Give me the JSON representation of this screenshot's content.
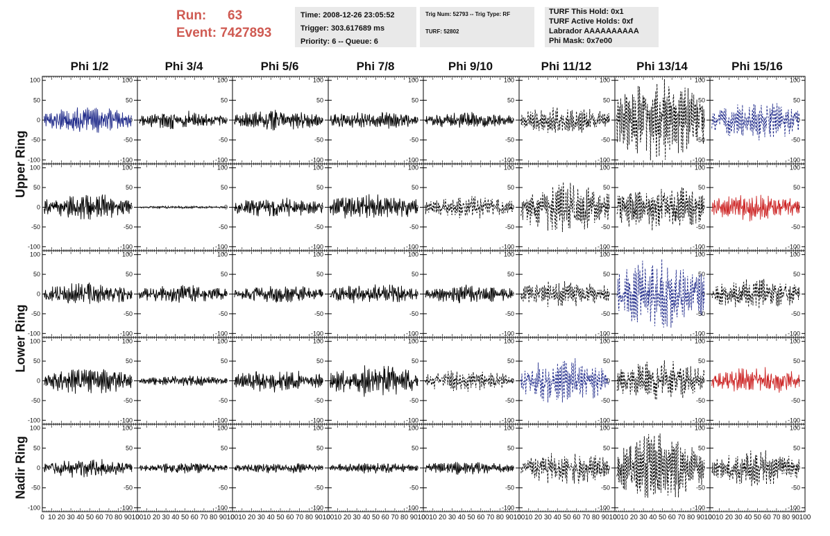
{
  "header": {
    "run_label": "Run:",
    "run_value": "63",
    "event_label": "Event:",
    "event_value": "7427893",
    "time": "Time: 2008-12-26 23:05:52",
    "trigger": "Trigger: 303.617689 ms",
    "priority": "Priority: 6 -- Queue: 6",
    "trig_num": "Trig Num: 52793 -- Trig Type: RF",
    "turf": "TURF: 52802",
    "turf_this_hold": "TURF This Hold: 0x1",
    "turf_active_holds": "TURF Active Holds: 0xf",
    "labrador": "Labrador AAAAAAAAAA",
    "phi_mask": "Phi Mask: 0x7e00"
  },
  "chart_data": {
    "type": "line",
    "columns": [
      "Phi 1/2",
      "Phi 3/4",
      "Phi 5/6",
      "Phi 7/8",
      "Phi 9/10",
      "Phi 11/12",
      "Phi 13/14",
      "Phi 15/16"
    ],
    "ring_labels": [
      {
        "label": "Upper Ring",
        "rows": [
          0,
          1
        ]
      },
      {
        "label": "Lower Ring",
        "rows": [
          2,
          3
        ]
      },
      {
        "label": "Nadir Ring",
        "rows": [
          4
        ]
      }
    ],
    "xlim": [
      0,
      100
    ],
    "xticks": [
      0,
      10,
      20,
      30,
      40,
      50,
      60,
      70,
      80,
      90,
      100
    ],
    "ylim": [
      -110,
      110
    ],
    "yticks": [
      -100,
      -50,
      0,
      50,
      100
    ],
    "colors": {
      "solid": "#000000",
      "dashed": "#000000",
      "blue": "#1f2a8a",
      "red": "#cc2222"
    },
    "rows": [
      [
        {
          "amp": 30,
          "style": "solid",
          "color": "blue"
        },
        {
          "amp": 20,
          "style": "solid",
          "color": "solid"
        },
        {
          "amp": 22,
          "style": "solid",
          "color": "solid"
        },
        {
          "amp": 20,
          "style": "solid",
          "color": "solid"
        },
        {
          "amp": 18,
          "style": "solid",
          "color": "solid"
        },
        {
          "amp": 30,
          "style": "dashed",
          "color": "dashed"
        },
        {
          "amp": 90,
          "style": "dashed",
          "color": "dashed"
        },
        {
          "amp": 45,
          "style": "dashed",
          "color": "blue"
        }
      ],
      [
        {
          "amp": 30,
          "style": "solid",
          "color": "solid"
        },
        {
          "amp": 3,
          "style": "solid",
          "color": "solid"
        },
        {
          "amp": 22,
          "style": "solid",
          "color": "solid"
        },
        {
          "amp": 30,
          "style": "solid",
          "color": "solid"
        },
        {
          "amp": 25,
          "style": "dashed",
          "color": "dashed"
        },
        {
          "amp": 55,
          "style": "dashed",
          "color": "dashed"
        },
        {
          "amp": 55,
          "style": "dashed",
          "color": "dashed"
        },
        {
          "amp": 30,
          "style": "solid",
          "color": "red"
        }
      ],
      [
        {
          "amp": 25,
          "style": "solid",
          "color": "solid"
        },
        {
          "amp": 20,
          "style": "solid",
          "color": "solid"
        },
        {
          "amp": 20,
          "style": "solid",
          "color": "solid"
        },
        {
          "amp": 22,
          "style": "solid",
          "color": "solid"
        },
        {
          "amp": 20,
          "style": "solid",
          "color": "solid"
        },
        {
          "amp": 30,
          "style": "dashed",
          "color": "dashed"
        },
        {
          "amp": 80,
          "style": "dashed",
          "color": "blue"
        },
        {
          "amp": 35,
          "style": "dashed",
          "color": "dashed"
        }
      ],
      [
        {
          "amp": 30,
          "style": "solid",
          "color": "solid"
        },
        {
          "amp": 12,
          "style": "solid",
          "color": "solid"
        },
        {
          "amp": 25,
          "style": "solid",
          "color": "solid"
        },
        {
          "amp": 35,
          "style": "solid",
          "color": "solid"
        },
        {
          "amp": 25,
          "style": "dashed",
          "color": "dashed"
        },
        {
          "amp": 50,
          "style": "dashed",
          "color": "blue"
        },
        {
          "amp": 45,
          "style": "dashed",
          "color": "dashed"
        },
        {
          "amp": 30,
          "style": "solid",
          "color": "red"
        }
      ],
      [
        {
          "amp": 22,
          "style": "solid",
          "color": "solid"
        },
        {
          "amp": 12,
          "style": "solid",
          "color": "solid"
        },
        {
          "amp": 12,
          "style": "solid",
          "color": "solid"
        },
        {
          "amp": 12,
          "style": "solid",
          "color": "solid"
        },
        {
          "amp": 15,
          "style": "solid",
          "color": "solid"
        },
        {
          "amp": 35,
          "style": "dashed",
          "color": "dashed"
        },
        {
          "amp": 75,
          "style": "dashed",
          "color": "dashed"
        },
        {
          "amp": 40,
          "style": "dashed",
          "color": "dashed"
        }
      ]
    ]
  }
}
